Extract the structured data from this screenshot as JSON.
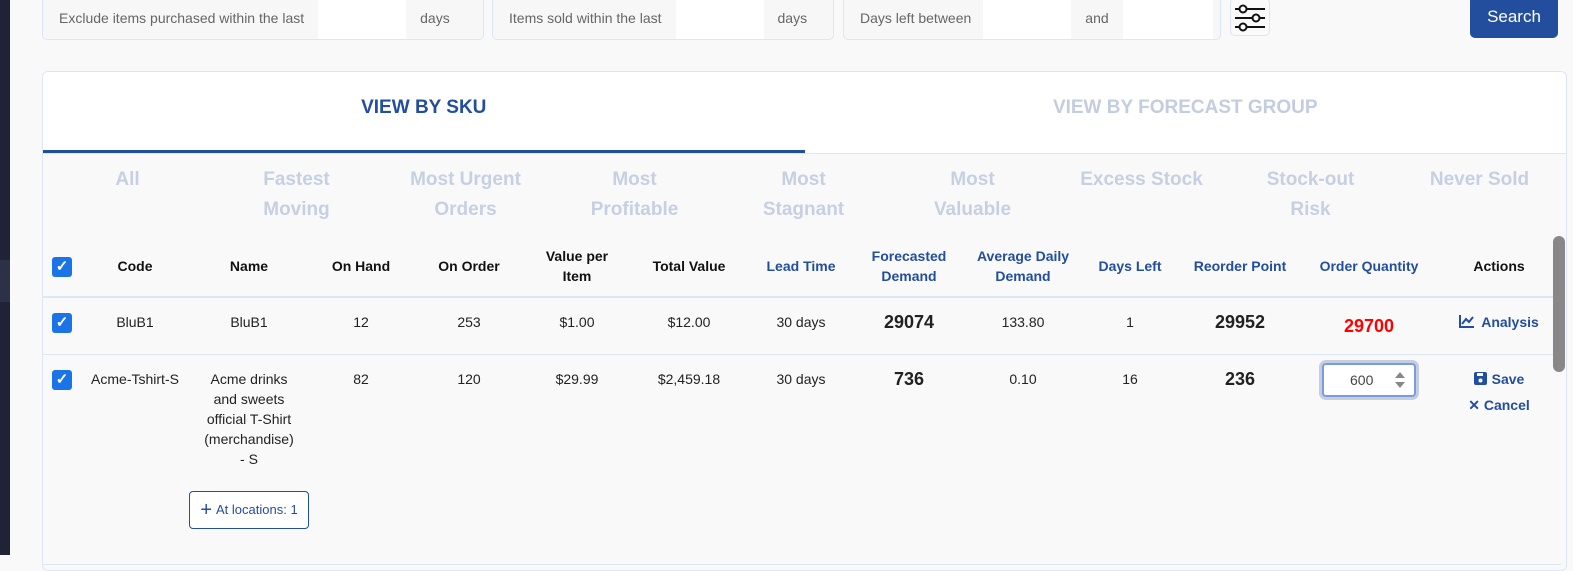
{
  "filters": [
    {
      "label": "Exclude items purchased within the last",
      "value": "",
      "suffix": "days"
    },
    {
      "label": "Items sold within the last",
      "value": "",
      "suffix": "days"
    },
    {
      "label": "Days left between",
      "value": "",
      "suffix": "and",
      "value2": ""
    }
  ],
  "search_label": "Search",
  "tabs": [
    {
      "label": "VIEW BY SKU",
      "active": true
    },
    {
      "label": "VIEW BY FORECAST GROUP",
      "active": false
    }
  ],
  "subfilters": [
    "All",
    "Fastest Moving",
    "Most Urgent Orders",
    "Most Profitable",
    "Most Stagnant",
    "Most Valuable",
    "Excess Stock",
    "Stock-out Risk",
    "Never Sold"
  ],
  "columns": [
    "Code",
    "Name",
    "On Hand",
    "On Order",
    "Value per Item",
    "Total Value",
    "Lead Time",
    "Forecasted Demand",
    "Average Daily Demand",
    "Days Left",
    "Reorder Point",
    "Order Quantity",
    "Actions"
  ],
  "rows": [
    {
      "code": "BluB1",
      "name": "BluB1",
      "on_hand": "12",
      "on_order": "253",
      "value_per_item": "$1.00",
      "total_value": "$12.00",
      "lead_time": "30 days",
      "forecasted_demand": "29074",
      "avg_daily_demand": "133.80",
      "days_left": "1",
      "reorder_point": "29952",
      "order_quantity": "29700",
      "action": "Analysis"
    },
    {
      "code": "Acme-Tshirt-S",
      "name": "Acme drinks and sweets official T-Shirt (merchandise) - S",
      "on_hand": "82",
      "on_order": "120",
      "value_per_item": "$29.99",
      "total_value": "$2,459.18",
      "lead_time": "30 days",
      "forecasted_demand": "736",
      "avg_daily_demand": "0.10",
      "days_left": "16",
      "reorder_point": "236",
      "order_quantity": "600",
      "save": "Save",
      "cancel": "Cancel",
      "locations": "At locations: 1"
    }
  ]
}
